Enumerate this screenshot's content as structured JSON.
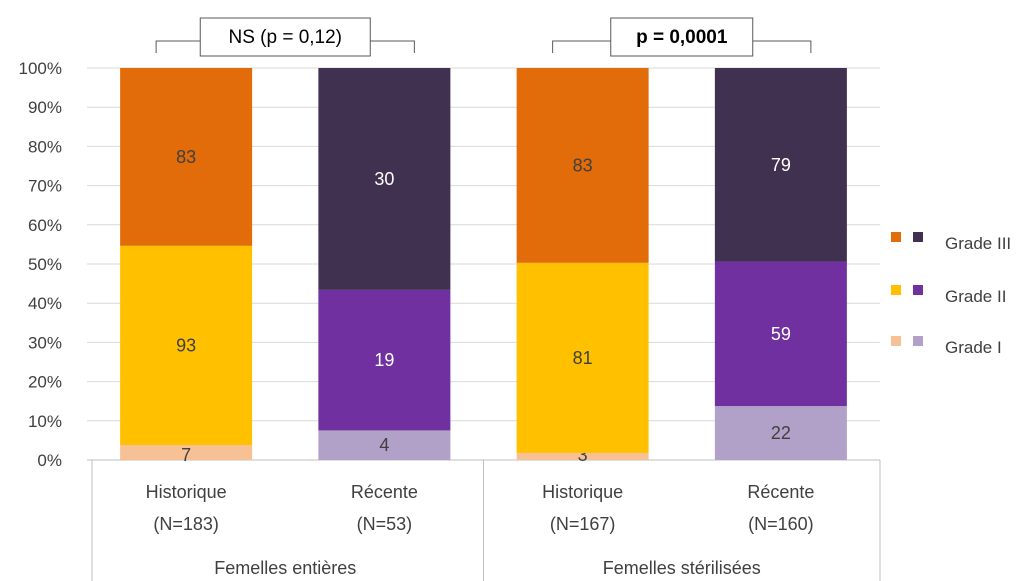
{
  "chart_data": {
    "type": "bar",
    "stacked": true,
    "percent_stacked": true,
    "ylim": [
      0,
      100
    ],
    "y_ticks": [
      "0%",
      "10%",
      "20%",
      "30%",
      "40%",
      "50%",
      "60%",
      "70%",
      "80%",
      "90%",
      "100%"
    ],
    "grid": true,
    "legend_position": "right",
    "groups": [
      {
        "label": "Femelles entières",
        "annotation": "NS (p = 0,12)",
        "annotation_bold": false,
        "bars": [
          {
            "label_line1": "Historique",
            "label_line2": "(N=183)",
            "segments": [
              {
                "series": "Grade I",
                "count": 7,
                "color": "#F8C195"
              },
              {
                "series": "Grade II",
                "count": 93,
                "color": "#FFC000"
              },
              {
                "series": "Grade III",
                "count": 83,
                "color": "#E26B0A"
              }
            ]
          },
          {
            "label_line1": "Récente",
            "label_line2": "(N=53)",
            "segments": [
              {
                "series": "Grade I",
                "count": 4,
                "color": "#B1A0C7"
              },
              {
                "series": "Grade II",
                "count": 19,
                "color": "#7030A0"
              },
              {
                "series": "Grade III",
                "count": 30,
                "color": "#403151"
              }
            ]
          }
        ]
      },
      {
        "label": "Femelles stérilisées",
        "annotation": "p = 0,0001",
        "annotation_bold": true,
        "bars": [
          {
            "label_line1": "Historique",
            "label_line2": "(N=167)",
            "segments": [
              {
                "series": "Grade I",
                "count": 3,
                "color": "#F8C195"
              },
              {
                "series": "Grade II",
                "count": 81,
                "color": "#FFC000"
              },
              {
                "series": "Grade III",
                "count": 83,
                "color": "#E26B0A"
              }
            ]
          },
          {
            "label_line1": "Récente",
            "label_line2": "(N=160)",
            "segments": [
              {
                "series": "Grade I",
                "count": 22,
                "color": "#B1A0C7"
              },
              {
                "series": "Grade II",
                "count": 59,
                "color": "#7030A0"
              },
              {
                "series": "Grade III",
                "count": 79,
                "color": "#403151"
              }
            ]
          }
        ]
      }
    ],
    "legend": [
      {
        "label": "Grade III",
        "colors": [
          "#E26B0A",
          "#403151"
        ]
      },
      {
        "label": "Grade II",
        "colors": [
          "#FFC000",
          "#7030A0"
        ]
      },
      {
        "label": "Grade I",
        "colors": [
          "#F8C195",
          "#B1A0C7"
        ]
      }
    ]
  }
}
